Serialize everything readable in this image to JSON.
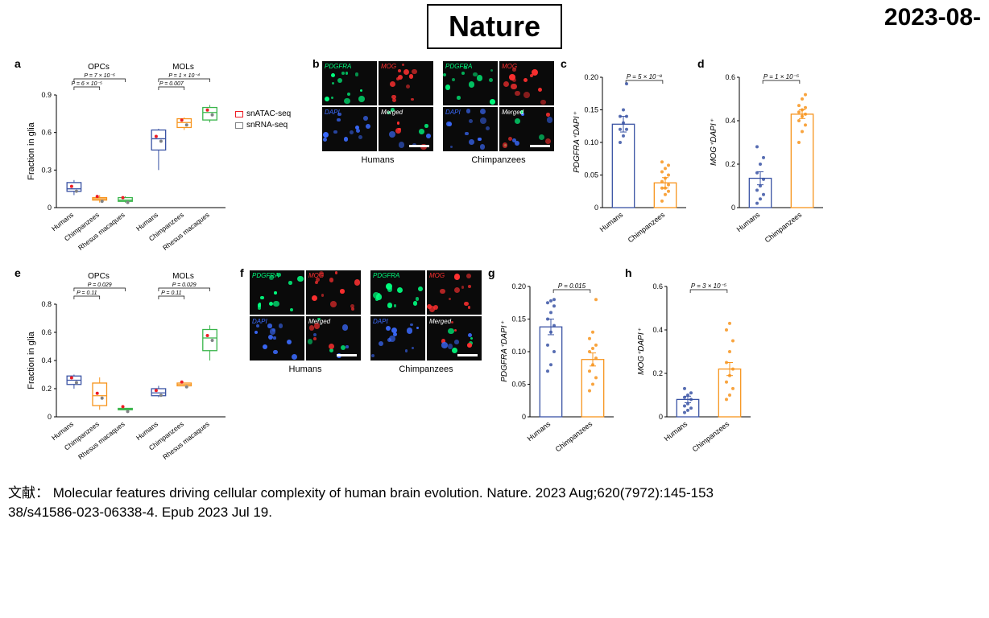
{
  "header": {
    "journal": "Nature",
    "date": "2023-08-"
  },
  "caption": "文献： Molecular features driving cellular complexity of human brain evolution. Nature. 2023 Aug;620(7972):145-153\n38/s41586-023-06338-4. Epub 2023 Jul 19.",
  "colors": {
    "humans": "#3a53a4",
    "chimps": "#f7941d",
    "rhesus": "#39b54a",
    "snatac": "#ed1c24",
    "snrna": "#808285",
    "pdgfra": "#00ff7f",
    "mog": "#ff3030",
    "dapi": "#3b6bff",
    "axis": "#000",
    "text": "#000",
    "bg": "#fff"
  },
  "panel_a": {
    "label": "a",
    "ylabel": "Fraction in glia",
    "groups": [
      "OPCs",
      "MOLs"
    ],
    "xticks": [
      "Humans",
      "Chimpanzees",
      "Rhesus macaques"
    ],
    "ylim": [
      0,
      0.9
    ],
    "yticks": [
      0,
      0.3,
      0.6,
      0.9
    ],
    "pvals_opcs": [
      "P = 6 × 10⁻⁵",
      "P = 7 × 10⁻⁶"
    ],
    "pvals_mols": [
      "P = 0.007",
      "P = 1 × 10⁻⁴"
    ],
    "boxes": {
      "OPCs": [
        {
          "x": 0,
          "q1": 0.13,
          "med": 0.15,
          "q3": 0.2,
          "lo": 0.1,
          "hi": 0.22,
          "color": "#3a53a4"
        },
        {
          "x": 1,
          "q1": 0.06,
          "med": 0.07,
          "q3": 0.08,
          "lo": 0.04,
          "hi": 0.1,
          "color": "#f7941d"
        },
        {
          "x": 2,
          "q1": 0.05,
          "med": 0.06,
          "q3": 0.08,
          "lo": 0.04,
          "hi": 0.09,
          "color": "#39b54a"
        }
      ],
      "MOLs": [
        {
          "x": 0,
          "q1": 0.46,
          "med": 0.55,
          "q3": 0.62,
          "lo": 0.3,
          "hi": 0.63,
          "color": "#3a53a4"
        },
        {
          "x": 1,
          "q1": 0.64,
          "med": 0.68,
          "q3": 0.71,
          "lo": 0.62,
          "hi": 0.72,
          "color": "#f7941d"
        },
        {
          "x": 2,
          "q1": 0.7,
          "med": 0.76,
          "q3": 0.8,
          "lo": 0.68,
          "hi": 0.82,
          "color": "#39b54a"
        }
      ]
    },
    "legend": [
      {
        "label": "snATAC-seq",
        "color": "#ed1c24"
      },
      {
        "label": "snRNA-seq",
        "color": "#808285"
      }
    ]
  },
  "panel_e": {
    "label": "e",
    "ylabel": "Fraction in glia",
    "groups": [
      "OPCs",
      "MOLs"
    ],
    "xticks": [
      "Humans",
      "Chimpanzees",
      "Rhesus macaques"
    ],
    "ylim": [
      0,
      0.8
    ],
    "yticks": [
      0,
      0.2,
      0.4,
      0.6,
      0.8
    ],
    "pvals_opcs": [
      "P = 0.11",
      "P = 0.029"
    ],
    "pvals_mols": [
      "P = 0.11",
      "P = 0.029"
    ],
    "boxes": {
      "OPCs": [
        {
          "x": 0,
          "q1": 0.23,
          "med": 0.26,
          "q3": 0.29,
          "lo": 0.2,
          "hi": 0.3,
          "color": "#3a53a4"
        },
        {
          "x": 1,
          "q1": 0.08,
          "med": 0.15,
          "q3": 0.24,
          "lo": 0.05,
          "hi": 0.28,
          "color": "#f7941d"
        },
        {
          "x": 2,
          "q1": 0.05,
          "med": 0.055,
          "q3": 0.06,
          "lo": 0.05,
          "hi": 0.06,
          "color": "#39b54a"
        }
      ],
      "MOLs": [
        {
          "x": 0,
          "q1": 0.15,
          "med": 0.17,
          "q3": 0.2,
          "lo": 0.14,
          "hi": 0.22,
          "color": "#3a53a4"
        },
        {
          "x": 1,
          "q1": 0.22,
          "med": 0.23,
          "q3": 0.24,
          "lo": 0.22,
          "hi": 0.24,
          "color": "#f7941d"
        },
        {
          "x": 2,
          "q1": 0.47,
          "med": 0.56,
          "q3": 0.62,
          "lo": 0.4,
          "hi": 0.65,
          "color": "#39b54a"
        }
      ]
    }
  },
  "panel_b": {
    "label": "b",
    "labels": [
      "PDGFRA",
      "MOG",
      "DAPI",
      "Merged"
    ],
    "sets": [
      "Humans",
      "Chimpanzees"
    ]
  },
  "panel_f": {
    "label": "f",
    "labels": [
      "PDGFRA",
      "MOG",
      "DAPI",
      "Merged"
    ],
    "sets": [
      "Humans",
      "Chimpanzees"
    ]
  },
  "panel_c": {
    "label": "c",
    "ylabel": "PDGFRA⁺DAPI⁺",
    "xticks": [
      "Humans",
      "Chimpanzees"
    ],
    "ylim": [
      0,
      0.2
    ],
    "yticks": [
      0,
      0.05,
      0.1,
      0.15,
      0.2
    ],
    "pval": "P = 5 × 10⁻⁸",
    "bars": [
      {
        "mean": 0.128,
        "sem": 0.012,
        "color": "#3a53a4"
      },
      {
        "mean": 0.038,
        "sem": 0.008,
        "color": "#f7941d"
      }
    ],
    "points": [
      [
        0.1,
        0.11,
        0.12,
        0.12,
        0.13,
        0.14,
        0.14,
        0.15,
        0.19
      ],
      [
        0.01,
        0.02,
        0.025,
        0.03,
        0.03,
        0.035,
        0.04,
        0.045,
        0.05,
        0.055,
        0.06,
        0.065,
        0.07
      ]
    ]
  },
  "panel_d": {
    "label": "d",
    "ylabel": "MOG⁺DAPI⁺",
    "xticks": [
      "Humans",
      "Chimpanzees"
    ],
    "ylim": [
      0,
      0.6
    ],
    "yticks": [
      0,
      0.2,
      0.4,
      0.6
    ],
    "pval": "P = 1 × 10⁻⁵",
    "bars": [
      {
        "mean": 0.135,
        "sem": 0.03,
        "color": "#3a53a4"
      },
      {
        "mean": 0.43,
        "sem": 0.02,
        "color": "#f7941d"
      }
    ],
    "points": [
      [
        0.02,
        0.04,
        0.06,
        0.08,
        0.1,
        0.13,
        0.16,
        0.2,
        0.23,
        0.28
      ],
      [
        0.3,
        0.35,
        0.38,
        0.4,
        0.42,
        0.43,
        0.44,
        0.45,
        0.46,
        0.47,
        0.5,
        0.52
      ]
    ]
  },
  "panel_g": {
    "label": "g",
    "ylabel": "PDGFRA⁺DAPI⁺",
    "xticks": [
      "Humans",
      "Chimpanzees"
    ],
    "ylim": [
      0,
      0.2
    ],
    "yticks": [
      0,
      0.05,
      0.1,
      0.15,
      0.2
    ],
    "pval": "P = 0.015",
    "bars": [
      {
        "mean": 0.138,
        "sem": 0.012,
        "color": "#3a53a4"
      },
      {
        "mean": 0.088,
        "sem": 0.01,
        "color": "#f7941d"
      }
    ],
    "points": [
      [
        0.07,
        0.08,
        0.1,
        0.11,
        0.13,
        0.14,
        0.15,
        0.16,
        0.17,
        0.175,
        0.178,
        0.18
      ],
      [
        0.04,
        0.05,
        0.06,
        0.07,
        0.08,
        0.09,
        0.1,
        0.105,
        0.11,
        0.12,
        0.13,
        0.18
      ]
    ]
  },
  "panel_h": {
    "label": "h",
    "ylabel": "MOG⁺DAPI⁺",
    "xticks": [
      "Humans",
      "Chimpanzees"
    ],
    "ylim": [
      0,
      0.6
    ],
    "yticks": [
      0,
      0.2,
      0.4,
      0.6
    ],
    "pval": "P = 3 × 10⁻⁵",
    "bars": [
      {
        "mean": 0.08,
        "sem": 0.015,
        "color": "#3a53a4"
      },
      {
        "mean": 0.22,
        "sem": 0.03,
        "color": "#f7941d"
      }
    ],
    "points": [
      [
        0.02,
        0.03,
        0.04,
        0.05,
        0.06,
        0.08,
        0.09,
        0.1,
        0.11,
        0.13
      ],
      [
        0.08,
        0.1,
        0.13,
        0.16,
        0.19,
        0.22,
        0.25,
        0.3,
        0.35,
        0.4,
        0.43
      ]
    ]
  }
}
